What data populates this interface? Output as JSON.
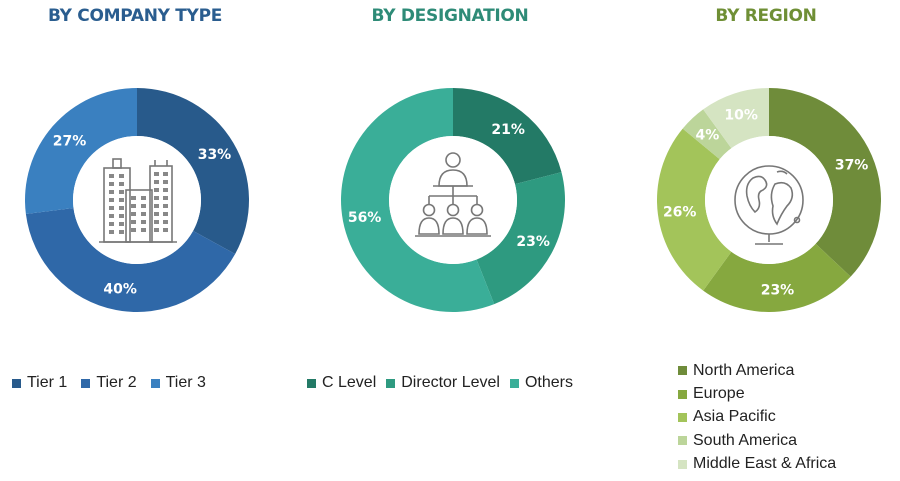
{
  "chart_data": [
    {
      "type": "pie",
      "title": "BY COMPANY TYPE",
      "title_color": "#2a5d8f",
      "categories": [
        "Tier 1",
        "Tier 2",
        "Tier 3"
      ],
      "values": [
        33,
        40,
        27
      ],
      "colors": [
        "#285a8b",
        "#2f68a8",
        "#3a80c0"
      ],
      "legend_position": "bottom"
    },
    {
      "type": "pie",
      "title": "BY DESIGNATION",
      "title_color": "#2e8b77",
      "categories": [
        "C Level",
        "Director Level",
        "Others"
      ],
      "values": [
        21,
        23,
        56
      ],
      "colors": [
        "#237a66",
        "#2e9a80",
        "#3aae98"
      ],
      "legend_position": "bottom"
    },
    {
      "type": "pie",
      "title": "BY REGION",
      "title_color": "#6f8f35",
      "categories": [
        "North America",
        "Europe",
        "Asia Pacific",
        "South America",
        "Middle East & Africa"
      ],
      "values": [
        37,
        23,
        26,
        4,
        10
      ],
      "colors": [
        "#6f8c3a",
        "#86a83f",
        "#a3c45a",
        "#bcd59a",
        "#d5e4c2"
      ],
      "legend_position": "bottom-right"
    }
  ],
  "icons": [
    "buildings-icon",
    "org-chart-icon",
    "globe-icon"
  ]
}
